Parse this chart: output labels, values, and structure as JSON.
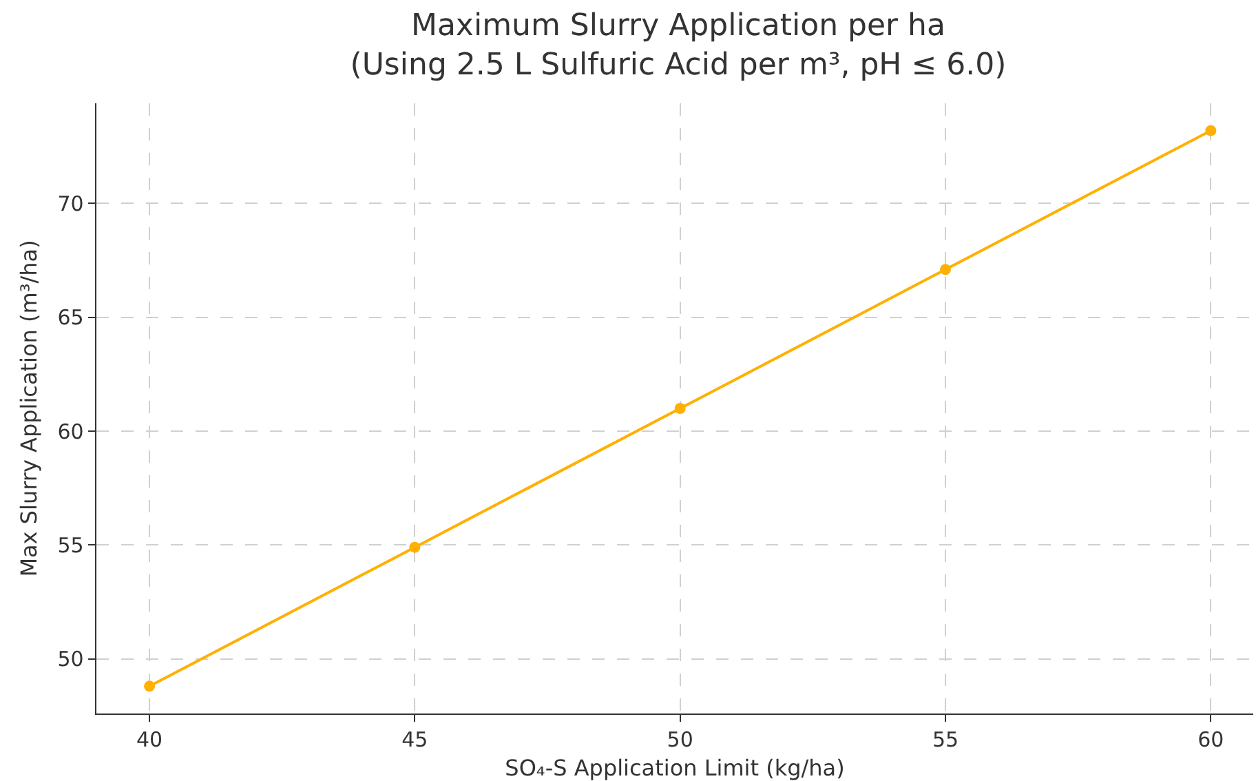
{
  "chart_data": {
    "type": "line",
    "title": "Maximum Slurry Application per ha\n(Using 2.5 L Sulfuric Acid per m³, pH ≤ 6.0)",
    "xlabel": "SO₄-S Application Limit (kg/ha)",
    "ylabel": "Max Slurry Application (m³/ha)",
    "x": [
      40,
      45,
      50,
      55,
      60
    ],
    "series": [
      {
        "color": "#ffb000",
        "values": [
          48.8,
          54.9,
          61.0,
          67.1,
          73.2
        ]
      }
    ],
    "xlim": [
      39,
      60.8
    ],
    "xticks": [
      40,
      45,
      50,
      55,
      60
    ],
    "ylim": [
      47.6,
      74.4
    ],
    "yticks": [
      50,
      55,
      60,
      65,
      70
    ],
    "grid": true,
    "marker": "circle",
    "line_style": "solid"
  }
}
